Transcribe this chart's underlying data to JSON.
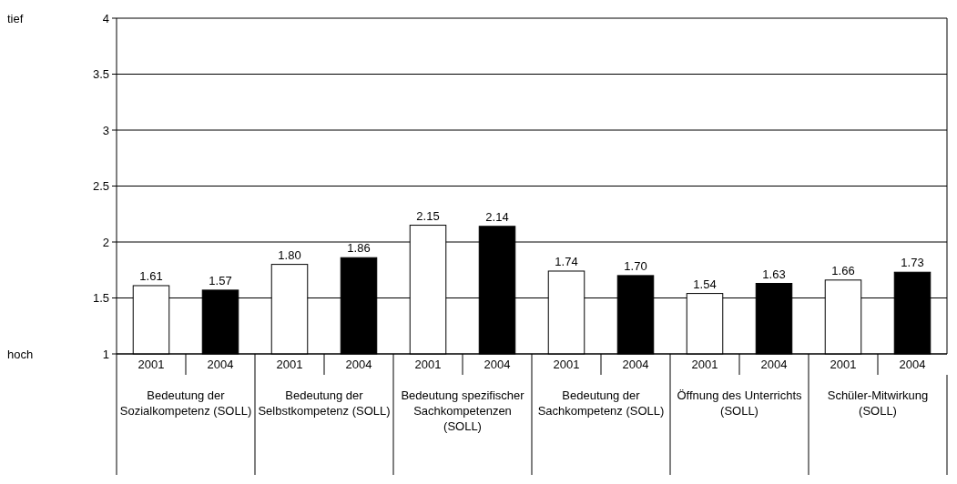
{
  "chart_data": {
    "type": "bar",
    "categories": [
      "2001",
      "2004",
      "2001",
      "2004",
      "2001",
      "2004",
      "2001",
      "2004",
      "2001",
      "2004",
      "2001",
      "2004"
    ],
    "values": [
      1.61,
      1.57,
      1.8,
      1.86,
      2.15,
      2.14,
      1.74,
      1.7,
      1.54,
      1.63,
      1.66,
      1.73
    ],
    "value_labels": [
      "1.61",
      "1.57",
      "1.80",
      "1.86",
      "2.15",
      "2.14",
      "1.74",
      "1.70",
      "1.54",
      "1.63",
      "1.66",
      "1.73"
    ],
    "colors": [
      "#ffffff",
      "#000000",
      "#ffffff",
      "#000000",
      "#ffffff",
      "#000000",
      "#ffffff",
      "#000000",
      "#ffffff",
      "#000000",
      "#ffffff",
      "#000000"
    ],
    "ylim": [
      1,
      4
    ],
    "yticks": [
      1,
      1.5,
      2,
      2.5,
      3,
      3.5,
      4
    ],
    "grid": "y",
    "annotations": [
      "tief",
      "hoch",
      "Bedeutung der Sozialkompetenz (SOLL)",
      "Bedeutung der Selbstkompetenz (SOLL)",
      "Bedeutung spezifischer Sachkompetenzen (SOLL)",
      "Bedeutung der Sachkompetenz (SOLL)",
      "Öffnung des Unterrichts (SOLL)",
      "Schüler-Mitwirkung (SOLL)"
    ]
  }
}
